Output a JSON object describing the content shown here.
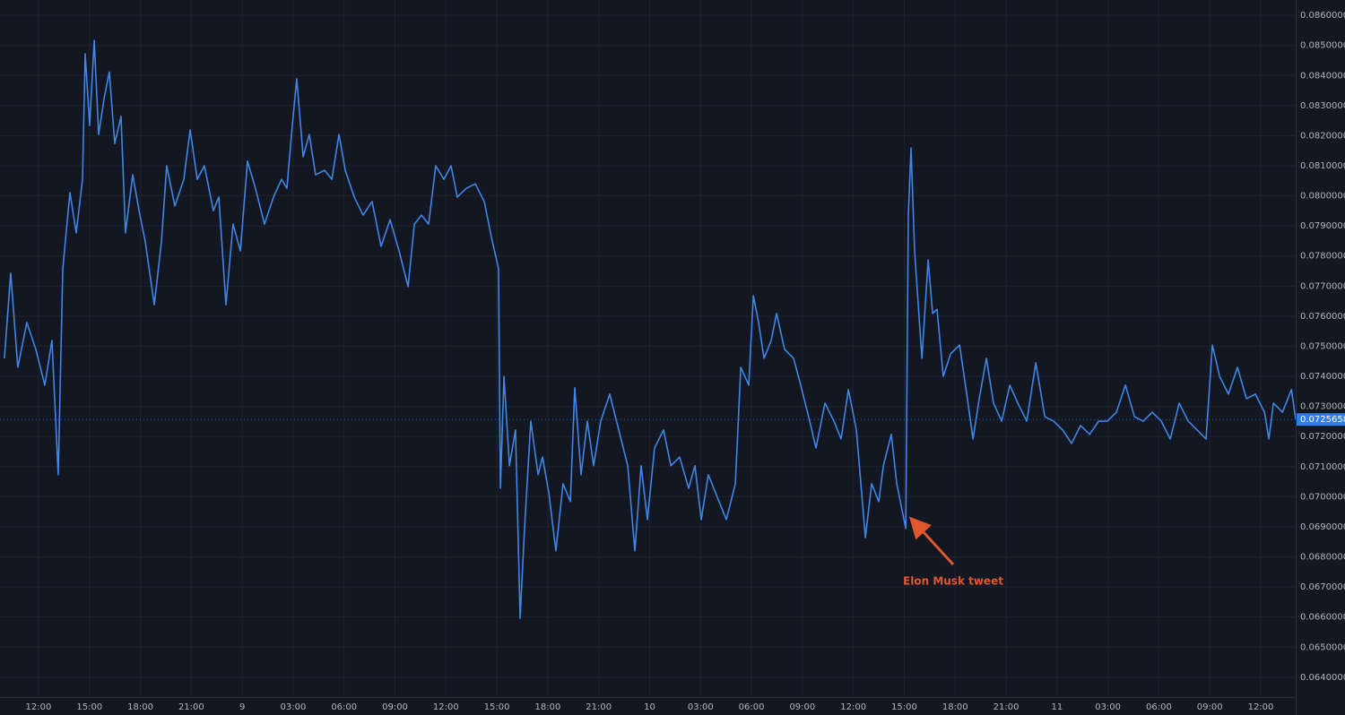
{
  "chart_data": {
    "type": "line",
    "xlim": [
      9.73,
      86.06
    ],
    "ylim": [
      0.06334,
      0.08651
    ],
    "grid": true,
    "xticks": [
      {
        "value": 12,
        "label": "12:00"
      },
      {
        "value": 15,
        "label": "15:00"
      },
      {
        "value": 18,
        "label": "18:00"
      },
      {
        "value": 21,
        "label": "21:00"
      },
      {
        "value": 24,
        "label": "9"
      },
      {
        "value": 27,
        "label": "03:00"
      },
      {
        "value": 30,
        "label": "06:00"
      },
      {
        "value": 33,
        "label": "09:00"
      },
      {
        "value": 36,
        "label": "12:00"
      },
      {
        "value": 39,
        "label": "15:00"
      },
      {
        "value": 42,
        "label": "18:00"
      },
      {
        "value": 45,
        "label": "21:00"
      },
      {
        "value": 48,
        "label": "10"
      },
      {
        "value": 51,
        "label": "03:00"
      },
      {
        "value": 54,
        "label": "06:00"
      },
      {
        "value": 57,
        "label": "09:00"
      },
      {
        "value": 60,
        "label": "12:00"
      },
      {
        "value": 63,
        "label": "15:00"
      },
      {
        "value": 66,
        "label": "18:00"
      },
      {
        "value": 69,
        "label": "21:00"
      },
      {
        "value": 72,
        "label": "11"
      },
      {
        "value": 75,
        "label": "03:00"
      },
      {
        "value": 78,
        "label": "06:00"
      },
      {
        "value": 81,
        "label": "09:00"
      },
      {
        "value": 84,
        "label": "12:00"
      }
    ],
    "yticks": [
      {
        "value": 0.064,
        "label": "0.06400000"
      },
      {
        "value": 0.065,
        "label": "0.06500000"
      },
      {
        "value": 0.066,
        "label": "0.06600000"
      },
      {
        "value": 0.067,
        "label": "0.06700000"
      },
      {
        "value": 0.068,
        "label": "0.06800000"
      },
      {
        "value": 0.069,
        "label": "0.06900000"
      },
      {
        "value": 0.07,
        "label": "0.07000000"
      },
      {
        "value": 0.071,
        "label": "0.07100000"
      },
      {
        "value": 0.072,
        "label": "0.07200000"
      },
      {
        "value": 0.073,
        "label": "0.07300000"
      },
      {
        "value": 0.074,
        "label": "0.07400000"
      },
      {
        "value": 0.075,
        "label": "0.07500000"
      },
      {
        "value": 0.076,
        "label": "0.07600000"
      },
      {
        "value": 0.077,
        "label": "0.07700000"
      },
      {
        "value": 0.078,
        "label": "0.07800000"
      },
      {
        "value": 0.079,
        "label": "0.07900000"
      },
      {
        "value": 0.08,
        "label": "0.08000000"
      },
      {
        "value": 0.081,
        "label": "0.08100000"
      },
      {
        "value": 0.082,
        "label": "0.08200000"
      },
      {
        "value": 0.083,
        "label": "0.08300000"
      },
      {
        "value": 0.084,
        "label": "0.08400000"
      },
      {
        "value": 0.085,
        "label": "0.08500000"
      },
      {
        "value": 0.086,
        "label": "0.08600000"
      }
    ],
    "last_price": 0.07256588,
    "last_price_color": "#2f7bf0",
    "annotation": {
      "text": "Elon Musk tweet",
      "color": "#e0572d"
    },
    "x": [
      9.99,
      10.36,
      10.78,
      11.31,
      11.84,
      12.37,
      12.79,
      13.16,
      13.43,
      13.85,
      14.22,
      14.59,
      14.75,
      15.01,
      15.28,
      15.54,
      15.86,
      16.17,
      16.49,
      16.86,
      17.12,
      17.55,
      17.92,
      18.29,
      18.82,
      19.24,
      19.55,
      20.03,
      20.56,
      20.93,
      21.35,
      21.77,
      22.3,
      22.62,
      23.04,
      23.46,
      23.89,
      24.31,
      24.78,
      25.31,
      25.84,
      26.32,
      26.63,
      26.95,
      27.21,
      27.59,
      27.95,
      28.32,
      28.85,
      29.28,
      29.7,
      30.07,
      30.6,
      31.12,
      31.65,
      32.18,
      32.71,
      33.24,
      33.77,
      34.14,
      34.56,
      34.98,
      35.4,
      35.88,
      36.3,
      36.67,
      37.2,
      37.73,
      38.26,
      38.68,
      39.1,
      39.21,
      39.42,
      39.74,
      40.1,
      40.37,
      40.63,
      41.0,
      41.43,
      41.69,
      42.06,
      42.48,
      42.9,
      43.33,
      43.59,
      43.96,
      44.33,
      44.7,
      45.12,
      45.65,
      46.18,
      46.71,
      47.13,
      47.5,
      47.87,
      48.29,
      48.82,
      49.25,
      49.77,
      50.3,
      50.67,
      51.04,
      51.46,
      51.99,
      52.52,
      53.05,
      53.37,
      53.84,
      54.11,
      54.42,
      54.74,
      55.16,
      55.48,
      55.95,
      56.48,
      56.9,
      57.43,
      57.8,
      58.33,
      58.86,
      59.28,
      59.71,
      60.18,
      60.71,
      61.08,
      61.5,
      61.77,
      62.24,
      62.56,
      63.09,
      63.24,
      63.4,
      63.61,
      64.04,
      64.41,
      64.67,
      64.93,
      65.3,
      65.73,
      66.26,
      66.68,
      67.05,
      67.42,
      67.84,
      68.26,
      68.74,
      69.22,
      69.69,
      70.22,
      70.75,
      71.28,
      71.8,
      72.33,
      72.86,
      73.39,
      73.92,
      74.45,
      74.97,
      75.5,
      76.03,
      76.56,
      77.08,
      77.61,
      78.14,
      78.67,
      79.2,
      79.73,
      80.25,
      80.78,
      81.15,
      81.58,
      82.1,
      82.63,
      83.16,
      83.69,
      84.22,
      84.48,
      84.75,
      85.28,
      85.81,
      86.06
    ],
    "series": [
      {
        "name": "Price",
        "color": "#3f86e6",
        "values": [
          0.0746,
          0.07743,
          0.0743,
          0.07579,
          0.0749,
          0.07371,
          0.07519,
          0.07073,
          0.07758,
          0.08011,
          0.07877,
          0.08055,
          0.08472,
          0.08234,
          0.08517,
          0.08204,
          0.08323,
          0.08412,
          0.08174,
          0.08264,
          0.07877,
          0.0807,
          0.07951,
          0.07847,
          0.07638,
          0.07847,
          0.081,
          0.07966,
          0.08055,
          0.08219,
          0.08055,
          0.081,
          0.07951,
          0.07996,
          0.07638,
          0.07906,
          0.07817,
          0.08115,
          0.08025,
          0.07906,
          0.07996,
          0.08055,
          0.08025,
          0.08234,
          0.08389,
          0.0813,
          0.08204,
          0.0807,
          0.08085,
          0.08055,
          0.08204,
          0.08085,
          0.07996,
          0.07936,
          0.07981,
          0.07832,
          0.07921,
          0.07817,
          0.07698,
          0.07906,
          0.07936,
          0.07906,
          0.081,
          0.08055,
          0.081,
          0.07996,
          0.08025,
          0.0804,
          0.07981,
          0.07862,
          0.07758,
          0.07028,
          0.074,
          0.07103,
          0.07222,
          0.06596,
          0.06894,
          0.07251,
          0.07073,
          0.07132,
          0.07013,
          0.0682,
          0.07043,
          0.06984,
          0.07362,
          0.07073,
          0.07251,
          0.07103,
          0.07251,
          0.07341,
          0.07222,
          0.07103,
          0.0682,
          0.07103,
          0.06924,
          0.07162,
          0.07222,
          0.07103,
          0.07132,
          0.07028,
          0.07103,
          0.06924,
          0.07073,
          0.06998,
          0.06924,
          0.07043,
          0.0743,
          0.07371,
          0.07668,
          0.07579,
          0.0746,
          0.07519,
          0.07609,
          0.0749,
          0.0746,
          0.07371,
          0.07251,
          0.07162,
          0.07311,
          0.07251,
          0.07192,
          0.07356,
          0.07222,
          0.06864,
          0.07043,
          0.06984,
          0.07103,
          0.07207,
          0.07043,
          0.06894,
          0.07936,
          0.08159,
          0.07817,
          0.0746,
          0.07787,
          0.07609,
          0.07623,
          0.074,
          0.07475,
          0.07504,
          0.07341,
          0.07192,
          0.07326,
          0.0746,
          0.07311,
          0.07251,
          0.07371,
          0.07311,
          0.07251,
          0.07445,
          0.07266,
          0.07251,
          0.07222,
          0.07177,
          0.07237,
          0.07207,
          0.07251,
          0.07251,
          0.07281,
          0.07371,
          0.07266,
          0.07251,
          0.07281,
          0.07251,
          0.07192,
          0.07311,
          0.07251,
          0.07222,
          0.07192,
          0.07504,
          0.074,
          0.07341,
          0.0743,
          0.07326,
          0.07341,
          0.07281,
          0.07192,
          0.07311,
          0.07281,
          0.07356,
          0.07257
        ]
      }
    ]
  }
}
